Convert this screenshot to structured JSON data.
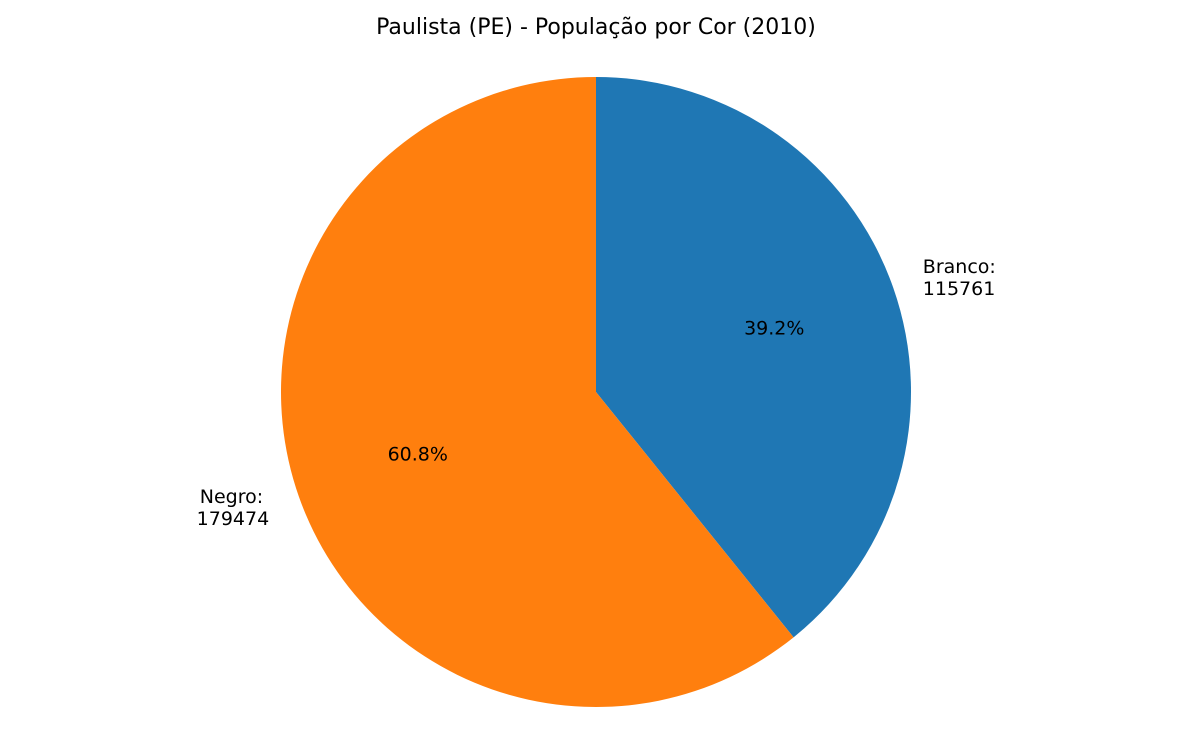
{
  "chart_data": {
    "type": "pie",
    "title": "Paulista (PE) - População por Cor (2010)",
    "start_angle_deg": 90,
    "direction": "clockwise",
    "slices": [
      {
        "name": "Branco",
        "label_line1": "Branco:",
        "label_line2": "115761",
        "value": 115761,
        "percent_label": "39.2%",
        "color": "#1f77b4"
      },
      {
        "name": "Negro",
        "label_line1": "Negro:",
        "label_line2": "179474",
        "value": 179474,
        "percent_label": "60.8%",
        "color": "#ff7f0e"
      }
    ]
  }
}
